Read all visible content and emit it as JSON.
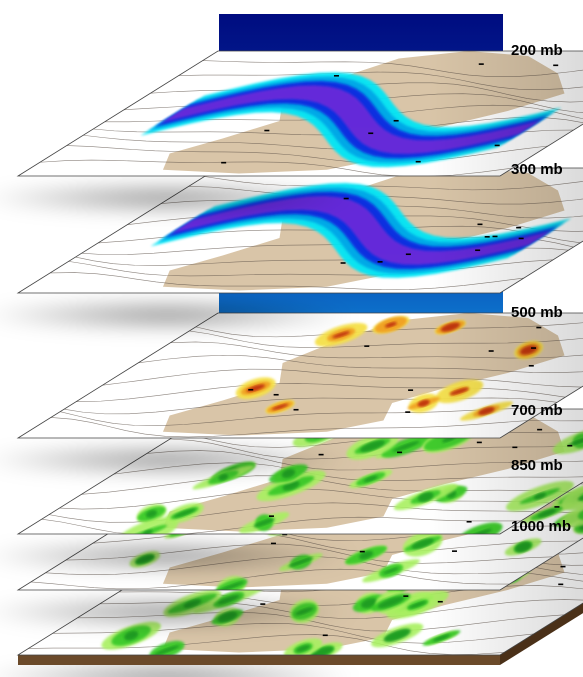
{
  "levels": [
    {
      "label": "200 mb",
      "field": "wind",
      "colors": [
        "#00e5f5",
        "#00a6e6",
        "#0a2ae0",
        "#6a2ad8"
      ]
    },
    {
      "label": "300 mb",
      "field": "wind",
      "colors": [
        "#00e5f5",
        "#00a6e6",
        "#0a2ae0",
        "#6a2ad8"
      ]
    },
    {
      "label": "500 mb",
      "field": "vorticity",
      "colors": [
        "#f5e04a",
        "#f0a020",
        "#c03010"
      ]
    },
    {
      "label": "700 mb",
      "field": "humidity",
      "colors": [
        "#a8f060",
        "#35c828",
        "#1a9a20"
      ]
    },
    {
      "label": "850 mb",
      "field": "humidity",
      "colors": [
        "#a8f060",
        "#35c828",
        "#1a9a20"
      ]
    },
    {
      "label": "1000 mb",
      "field": "humidity",
      "colors": [
        "#a8f060",
        "#35c828",
        "#1a9a20"
      ]
    }
  ],
  "colors": {
    "background_gradient": [
      "#000c80",
      "#052a9a",
      "#0a5fc0",
      "#18a8ec",
      "#8ee6e2"
    ],
    "land": "#d9c5a8",
    "ground": "#6b4a2a",
    "contour": "#5a4e46"
  }
}
